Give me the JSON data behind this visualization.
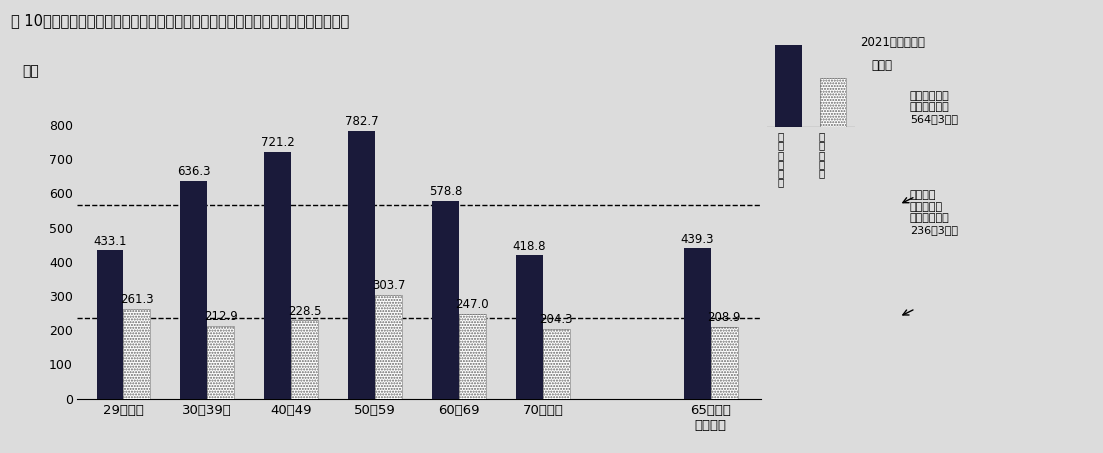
{
  "title": "図 10　世帯主の年齢階級別にみた１世帯当たり－世帯人員１人当たり平均所得金額",
  "ylabel": "万円",
  "categories": [
    "29歳以下",
    "30～39歳",
    "40～49",
    "50～59",
    "60～69",
    "70歳以上",
    "65歳以上\n（再掲）"
  ],
  "bar1_values": [
    433.1,
    636.3,
    721.2,
    782.7,
    578.8,
    418.8,
    439.3
  ],
  "bar2_values": [
    261.3,
    212.9,
    228.5,
    303.7,
    247.0,
    204.3,
    208.9
  ],
  "bar1_color": "#1a1a3a",
  "hline1": 564.3,
  "hline2": 236.3,
  "ylim_max": 900,
  "yticks": [
    0,
    100,
    200,
    300,
    400,
    500,
    600,
    700,
    800
  ],
  "bg_color": "#dcdcdc",
  "bar_width": 0.32,
  "year_label_line1": "2021（令和３）",
  "year_label_line2": "年調査",
  "legend_text1": "１\n世\n帯\n当\nた\nり",
  "legend_text2": "１\n人\n当\nた\nり",
  "annot1_text": "１世帯当たり\n平均所得金額\n564万3千円",
  "annot2_text": "世帯人員\n１人当たり\n平均所得金額\n236万3千円"
}
